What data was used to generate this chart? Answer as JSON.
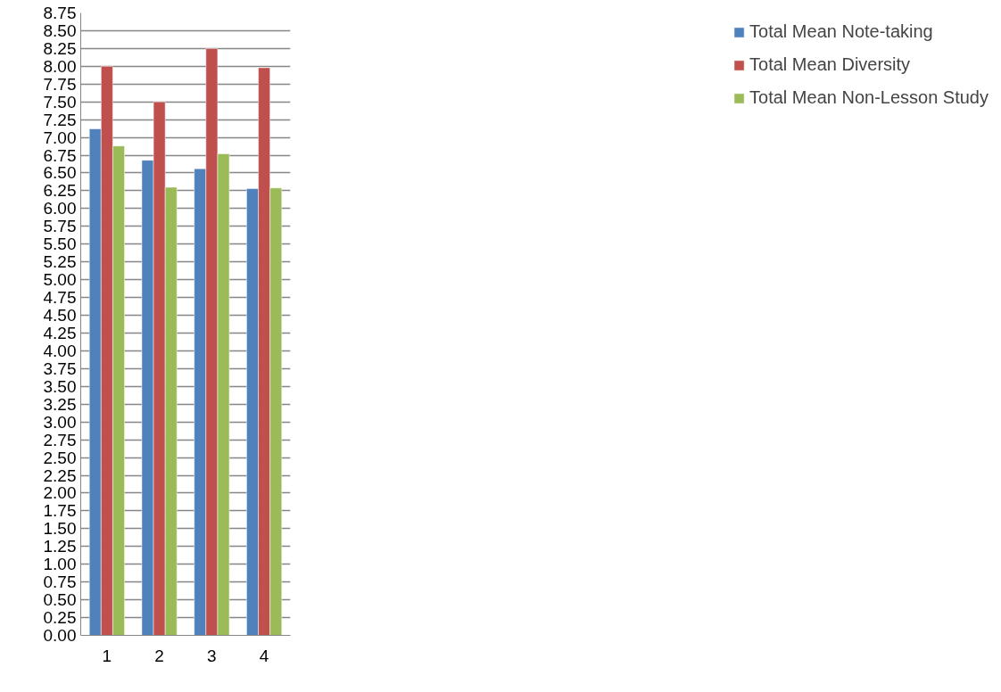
{
  "chart_data": {
    "type": "bar",
    "categories": [
      "1",
      "2",
      "3",
      "4"
    ],
    "series": [
      {
        "name": "Total Mean Note-taking",
        "color": "#4f81bd",
        "values": [
          7.12,
          6.68,
          6.56,
          6.28
        ]
      },
      {
        "name": "Total Mean Diversity",
        "color": "#c0504d",
        "values": [
          8.0,
          7.5,
          8.25,
          7.98
        ]
      },
      {
        "name": "Total Mean Non-Lesson Study",
        "color": "#9bbb59",
        "values": [
          6.88,
          6.3,
          6.77,
          6.29
        ]
      }
    ],
    "ylim": [
      0,
      8.75
    ],
    "yticks": [
      {
        "value": 0,
        "label": "0.00"
      },
      {
        "value": 0.25,
        "label": "0.25"
      },
      {
        "value": 0.5,
        "label": "0.50"
      },
      {
        "value": 0.75,
        "label": "0.75"
      },
      {
        "value": 1,
        "label": "1.00"
      },
      {
        "value": 1.25,
        "label": "1.25"
      },
      {
        "value": 1.5,
        "label": "1.50"
      },
      {
        "value": 1.75,
        "label": "1.75"
      },
      {
        "value": 2,
        "label": "2.00"
      },
      {
        "value": 2.25,
        "label": "2.25"
      },
      {
        "value": 2.5,
        "label": "2.50"
      },
      {
        "value": 2.75,
        "label": "2.75"
      },
      {
        "value": 3,
        "label": "3.00"
      },
      {
        "value": 3.25,
        "label": "3.25"
      },
      {
        "value": 3.5,
        "label": "3.50"
      },
      {
        "value": 3.75,
        "label": "3.75"
      },
      {
        "value": 4,
        "label": "4.00"
      },
      {
        "value": 4.25,
        "label": "4.25"
      },
      {
        "value": 4.5,
        "label": "4.50"
      },
      {
        "value": 4.75,
        "label": "4.75"
      },
      {
        "value": 5,
        "label": "5.00"
      },
      {
        "value": 5.25,
        "label": "5.25"
      },
      {
        "value": 5.5,
        "label": "5.50"
      },
      {
        "value": 5.75,
        "label": "5.75"
      },
      {
        "value": 6,
        "label": "6.00"
      },
      {
        "value": 6.25,
        "label": "6.25"
      },
      {
        "value": 6.5,
        "label": "6.50"
      },
      {
        "value": 6.75,
        "label": "6.75"
      },
      {
        "value": 7,
        "label": "7.00"
      },
      {
        "value": 7.25,
        "label": "7.25"
      },
      {
        "value": 7.5,
        "label": "7.50"
      },
      {
        "value": 7.75,
        "label": "7.75"
      },
      {
        "value": 8,
        "label": "8.00"
      },
      {
        "value": 8.25,
        "label": "8.25"
      },
      {
        "value": 8.5,
        "label": "8.50"
      },
      {
        "value": 8.75,
        "label": "8.75"
      }
    ],
    "grid": "y",
    "legend": "right"
  }
}
